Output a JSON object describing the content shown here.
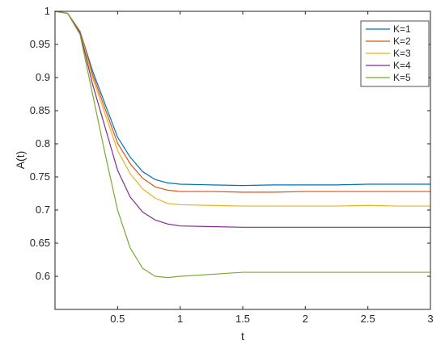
{
  "chart_data": {
    "type": "line",
    "title": "",
    "xlabel": "t",
    "ylabel": "A(t)",
    "xlim": [
      0,
      3
    ],
    "ylim": [
      0.55,
      1.0
    ],
    "x_ticks": [
      0.5,
      1,
      1.5,
      2,
      2.5,
      3
    ],
    "x_tick_labels": [
      "0.5",
      "1",
      "1.5",
      "2",
      "2.5",
      "3"
    ],
    "y_ticks": [
      0.6,
      0.65,
      0.7,
      0.75,
      0.8,
      0.85,
      0.9,
      0.95,
      1
    ],
    "y_tick_labels": [
      "0.6",
      "0.65",
      "0.7",
      "0.75",
      "0.8",
      "0.85",
      "0.9",
      "0.95",
      "1"
    ],
    "grid": false,
    "legend_position": "top-right",
    "x": [
      0.0,
      0.1,
      0.2,
      0.3,
      0.4,
      0.5,
      0.6,
      0.7,
      0.8,
      0.9,
      1.0,
      1.25,
      1.5,
      1.75,
      2.0,
      2.25,
      2.5,
      2.75,
      3.0
    ],
    "series": [
      {
        "name": "K=1",
        "color": "#0072BD",
        "values": [
          1.0,
          0.997,
          0.97,
          0.91,
          0.86,
          0.81,
          0.78,
          0.758,
          0.746,
          0.741,
          0.739,
          0.738,
          0.737,
          0.738,
          0.738,
          0.738,
          0.739,
          0.739,
          0.739
        ]
      },
      {
        "name": "K=2",
        "color": "#D95319",
        "values": [
          1.0,
          0.997,
          0.97,
          0.905,
          0.853,
          0.801,
          0.77,
          0.748,
          0.735,
          0.73,
          0.728,
          0.728,
          0.727,
          0.727,
          0.728,
          0.728,
          0.728,
          0.728,
          0.728
        ]
      },
      {
        "name": "K=3",
        "color": "#EDB120",
        "values": [
          1.0,
          0.997,
          0.97,
          0.9,
          0.845,
          0.79,
          0.755,
          0.732,
          0.718,
          0.71,
          0.708,
          0.707,
          0.706,
          0.706,
          0.706,
          0.706,
          0.707,
          0.706,
          0.706
        ]
      },
      {
        "name": "K=4",
        "color": "#7E2F8E",
        "values": [
          1.0,
          0.997,
          0.968,
          0.89,
          0.825,
          0.76,
          0.72,
          0.697,
          0.685,
          0.679,
          0.676,
          0.675,
          0.674,
          0.674,
          0.674,
          0.674,
          0.674,
          0.674,
          0.674
        ]
      },
      {
        "name": "K=5",
        "color": "#77AC30",
        "values": [
          1.0,
          0.997,
          0.965,
          0.875,
          0.785,
          0.7,
          0.643,
          0.612,
          0.6,
          0.598,
          0.6,
          0.603,
          0.606,
          0.606,
          0.606,
          0.606,
          0.606,
          0.606,
          0.606
        ]
      }
    ]
  }
}
